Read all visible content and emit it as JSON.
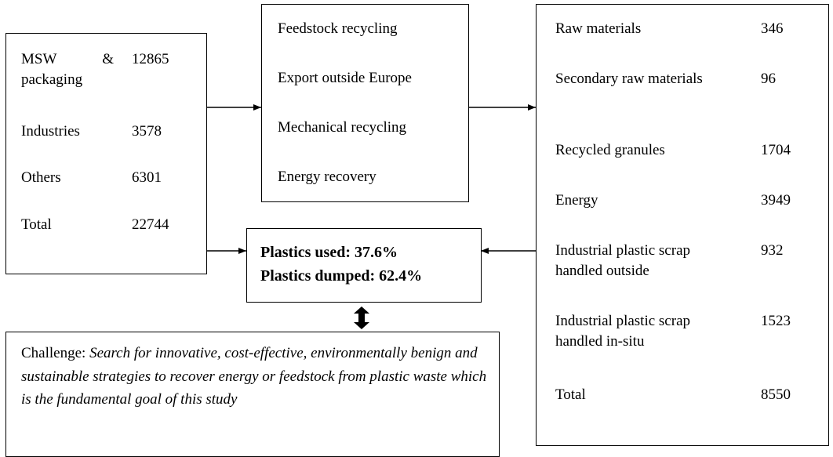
{
  "inputs": {
    "rows": [
      {
        "label": "MSW & packaging",
        "value": "12865"
      },
      {
        "label": "Industries",
        "value": "3578"
      },
      {
        "label": "Others",
        "value": "6301"
      },
      {
        "label": "Total",
        "value": "22744"
      }
    ]
  },
  "processes": {
    "items": [
      "Feedstock recycling",
      "Export outside Europe",
      "Mechanical recycling",
      "Energy recovery"
    ]
  },
  "result": {
    "lines": [
      "Plastics used: 37.6%",
      "Plastics dumped: 62.4%"
    ]
  },
  "challenge": {
    "label": "Challenge:",
    "text": "Search for innovative, cost-effective, environmentally benign and sustainable strategies to recover energy or feedstock from plastic waste which is the fundamental goal of this study"
  },
  "outputs": {
    "rows": [
      {
        "label": "Raw materials",
        "value": "346"
      },
      {
        "label": "Secondary raw materials",
        "value": "96"
      },
      {
        "label": "Recycled granules",
        "value": "1704"
      },
      {
        "label": "Energy",
        "value": "3949"
      },
      {
        "label": "Industrial plastic scrap handled outside",
        "value": "932"
      },
      {
        "label": "Industrial plastic scrap handled in-situ",
        "value": "1523"
      },
      {
        "label": "Total",
        "value": "8550"
      }
    ]
  }
}
